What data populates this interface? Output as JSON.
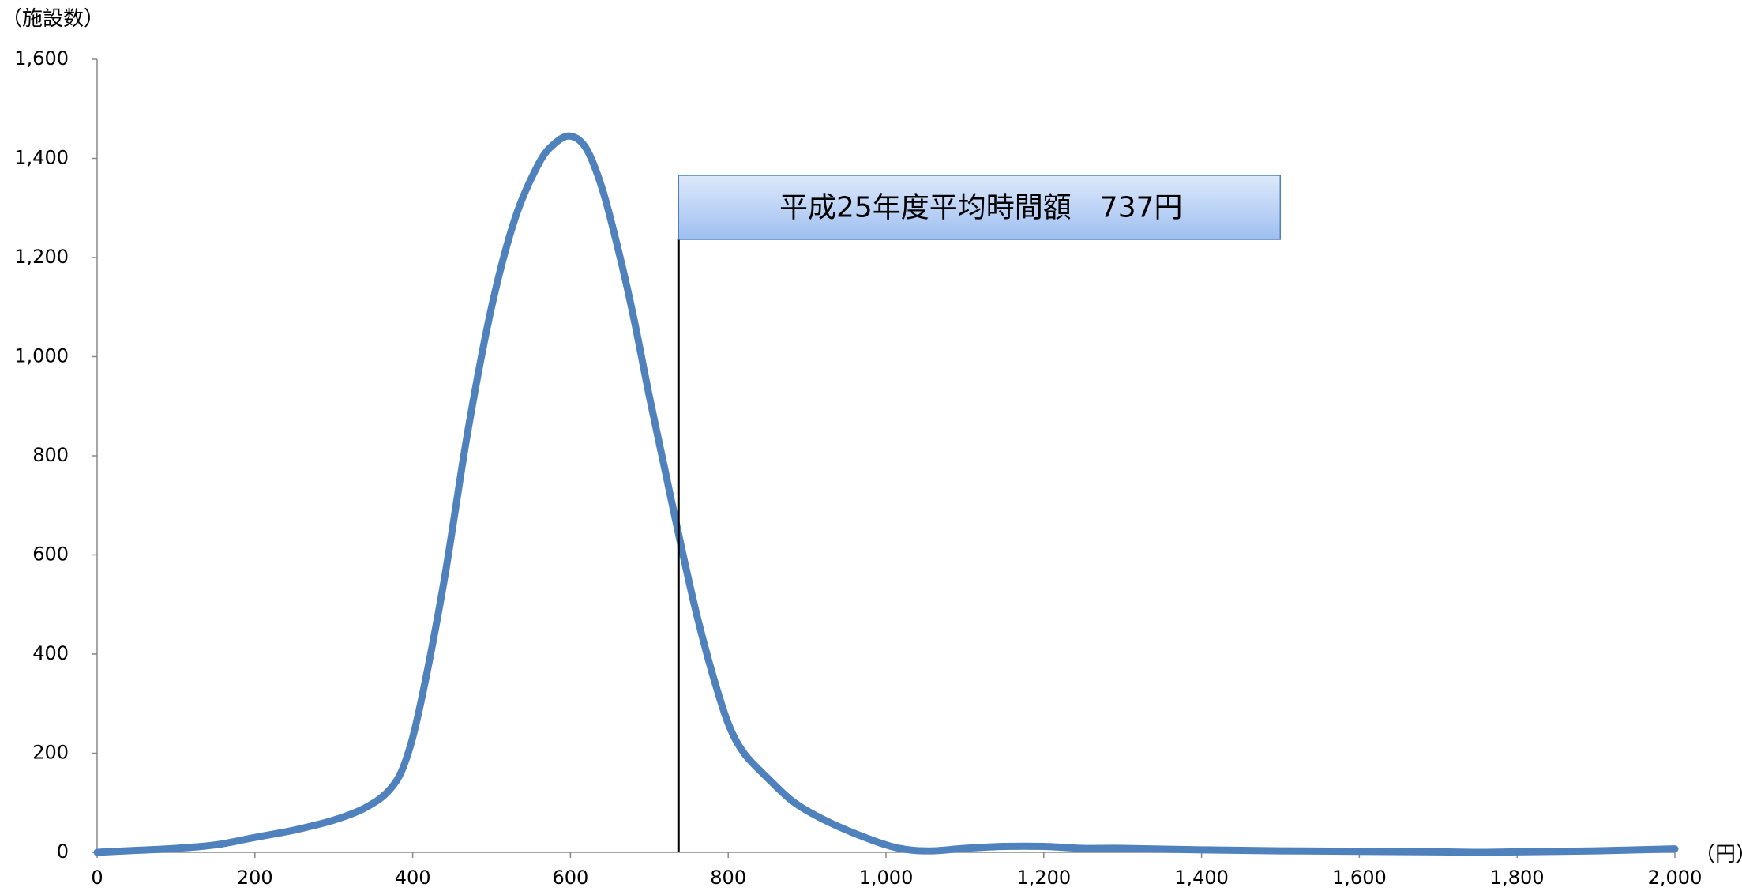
{
  "chart_data": {
    "type": "line",
    "y_unit_label": "（施設数）",
    "x_unit_label": "（円）",
    "xlim": [
      0,
      2000
    ],
    "ylim": [
      0,
      1600
    ],
    "x_ticks": [
      0,
      200,
      400,
      600,
      800,
      1000,
      1200,
      1400,
      1600,
      1800,
      2000
    ],
    "x_tick_labels": [
      "0",
      "200",
      "400",
      "600",
      "800",
      "1,000",
      "1,200",
      "1,400",
      "1,600",
      "1,800",
      "2,000"
    ],
    "y_ticks": [
      0,
      200,
      400,
      600,
      800,
      1000,
      1200,
      1400,
      1600
    ],
    "y_tick_labels": [
      "0",
      "200",
      "400",
      "600",
      "800",
      "1,000",
      "1,200",
      "1,400",
      "1,600"
    ],
    "grid": false,
    "series": [
      {
        "color": "#4F81BD",
        "x": [
          0,
          50,
          100,
          150,
          200,
          250,
          300,
          340,
          370,
          390,
          410,
          440,
          470,
          500,
          530,
          560,
          580,
          600,
          620,
          640,
          660,
          680,
          700,
          720,
          740,
          760,
          780,
          800,
          820,
          850,
          880,
          910,
          950,
          1000,
          1030,
          1060,
          1100,
          1150,
          1200,
          1250,
          1300,
          1400,
          1500,
          1600,
          1700,
          1750,
          1800,
          1900,
          2000
        ],
        "y": [
          0,
          4,
          8,
          15,
          30,
          45,
          65,
          90,
          125,
          180,
          300,
          550,
          850,
          1100,
          1280,
          1390,
          1430,
          1445,
          1420,
          1340,
          1220,
          1080,
          920,
          770,
          620,
          480,
          360,
          260,
          200,
          150,
          105,
          75,
          45,
          15,
          5,
          3,
          8,
          12,
          12,
          8,
          8,
          5,
          3,
          2,
          1,
          0,
          1,
          3,
          7
        ]
      }
    ],
    "annotation": {
      "text": "平成25年度平均時間額　737円",
      "x": 737
    }
  }
}
